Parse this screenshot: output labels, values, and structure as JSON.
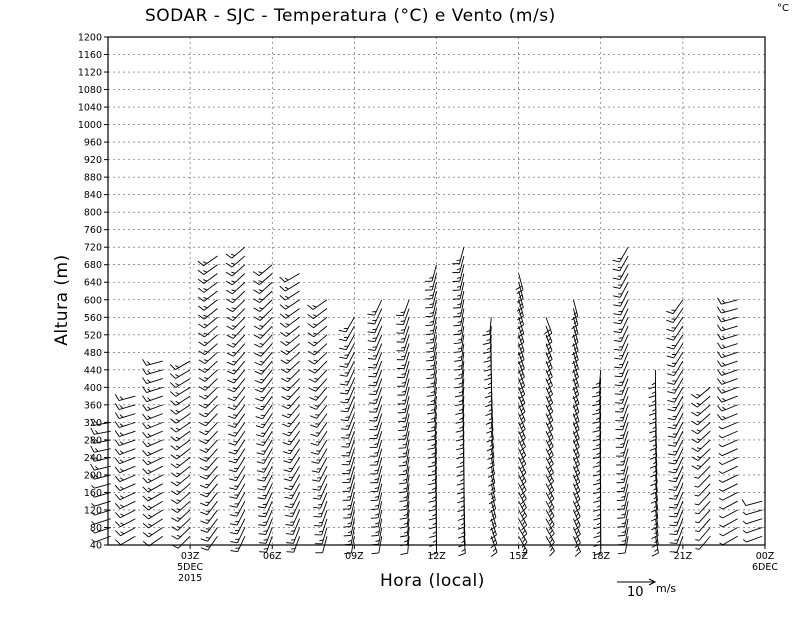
{
  "chart_data": {
    "type": "wind_barb_time_height",
    "title": "SODAR - SJC - Temperatura (°C) e Vento (m/s)",
    "corner_unit": "°C",
    "xlabel": "Hora (local)",
    "ylabel": "Altura (m)",
    "ylim": [
      40,
      1200
    ],
    "yticks": [
      40,
      80,
      120,
      160,
      200,
      240,
      280,
      320,
      360,
      400,
      440,
      480,
      520,
      560,
      600,
      640,
      680,
      720,
      760,
      800,
      840,
      880,
      920,
      960,
      1000,
      1040,
      1080,
      1120,
      1160,
      1200
    ],
    "xlim_hours": [
      0,
      24
    ],
    "xticks": [
      {
        "hour": 3,
        "label": "03Z",
        "sub1": "5DEC",
        "sub2": "2015"
      },
      {
        "hour": 6,
        "label": "06Z",
        "sub1": "",
        "sub2": ""
      },
      {
        "hour": 9,
        "label": "09Z",
        "sub1": "",
        "sub2": ""
      },
      {
        "hour": 12,
        "label": "12Z",
        "sub1": "",
        "sub2": ""
      },
      {
        "hour": 15,
        "label": "15Z",
        "sub1": "",
        "sub2": ""
      },
      {
        "hour": 18,
        "label": "18Z",
        "sub1": "",
        "sub2": ""
      },
      {
        "hour": 21,
        "label": "21Z",
        "sub1": "",
        "sub2": ""
      },
      {
        "hour": 24,
        "label": "00Z",
        "sub1": "6DEC",
        "sub2": ""
      }
    ],
    "grid": true,
    "reference_vector": {
      "speed": 10,
      "value_label": "10",
      "unit_label": "m/s"
    },
    "profiles": [
      {
        "hour": 0.1,
        "top": 320,
        "speed": 4,
        "dir_deg": 250,
        "veer": 10
      },
      {
        "hour": 1.0,
        "top": 380,
        "speed": 5,
        "dir_deg": 240,
        "veer": 15
      },
      {
        "hour": 2.0,
        "top": 460,
        "speed": 5,
        "dir_deg": 235,
        "veer": 20
      },
      {
        "hour": 3.0,
        "top": 460,
        "speed": 5,
        "dir_deg": 225,
        "veer": 15
      },
      {
        "hour": 4.0,
        "top": 700,
        "speed": 6,
        "dir_deg": 215,
        "veer": 20
      },
      {
        "hour": 5.0,
        "top": 720,
        "speed": 6,
        "dir_deg": 205,
        "veer": 25
      },
      {
        "hour": 6.0,
        "top": 680,
        "speed": 6,
        "dir_deg": 200,
        "veer": 30
      },
      {
        "hour": 7.0,
        "top": 660,
        "speed": 6,
        "dir_deg": 200,
        "veer": 40
      },
      {
        "hour": 8.0,
        "top": 600,
        "speed": 5,
        "dir_deg": 195,
        "veer": 40
      },
      {
        "hour": 9.0,
        "top": 560,
        "speed": 5,
        "dir_deg": 190,
        "veer": 20
      },
      {
        "hour": 10.0,
        "top": 600,
        "speed": 5,
        "dir_deg": 190,
        "veer": 15
      },
      {
        "hour": 11.0,
        "top": 600,
        "speed": 5,
        "dir_deg": 185,
        "veer": 15
      },
      {
        "hour": 12.0,
        "top": 680,
        "speed": 5,
        "dir_deg": 180,
        "veer": 15
      },
      {
        "hour": 13.0,
        "top": 720,
        "speed": 6,
        "dir_deg": 175,
        "veer": 20
      },
      {
        "hour": 14.0,
        "top": 560,
        "speed": 7,
        "dir_deg": 160,
        "veer": 25
      },
      {
        "hour": 15.0,
        "top": 660,
        "speed": 8,
        "dir_deg": 150,
        "veer": 15
      },
      {
        "hour": 16.0,
        "top": 560,
        "speed": 8,
        "dir_deg": 150,
        "veer": 10
      },
      {
        "hour": 17.0,
        "top": 600,
        "speed": 7,
        "dir_deg": 155,
        "veer": 10
      },
      {
        "hour": 18.0,
        "top": 440,
        "speed": 5,
        "dir_deg": 180,
        "veer": 5
      },
      {
        "hour": 19.0,
        "top": 720,
        "speed": 5,
        "dir_deg": 190,
        "veer": 20
      },
      {
        "hour": 20.0,
        "top": 440,
        "speed": 6,
        "dir_deg": 170,
        "veer": 10
      },
      {
        "hour": 21.0,
        "top": 600,
        "speed": 5,
        "dir_deg": 200,
        "veer": 15
      },
      {
        "hour": 22.0,
        "top": 400,
        "speed": 4,
        "dir_deg": 220,
        "veer": 10
      },
      {
        "hour": 23.0,
        "top": 600,
        "speed": 4,
        "dir_deg": 240,
        "veer": 15
      },
      {
        "hour": 23.9,
        "top": 140,
        "speed": 3,
        "dir_deg": 250,
        "veer": 5
      }
    ]
  }
}
